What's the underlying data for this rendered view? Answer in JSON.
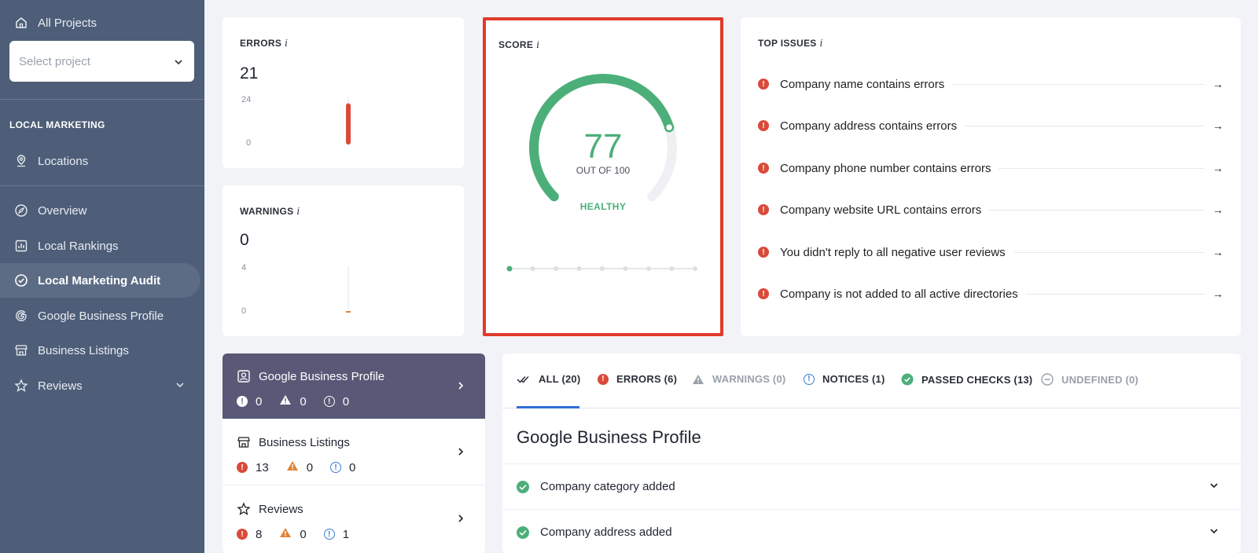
{
  "sidebar": {
    "all_projects": "All Projects",
    "select_placeholder": "Select project",
    "section": "LOCAL MARKETING",
    "items": [
      {
        "label": "Locations",
        "icon": "pin-icon"
      },
      {
        "label": "Overview",
        "icon": "compass-icon"
      },
      {
        "label": "Local Rankings",
        "icon": "bar-chart-icon"
      },
      {
        "label": "Local Marketing Audit",
        "icon": "check-circle-icon"
      },
      {
        "label": "Google Business Profile",
        "icon": "google-icon"
      },
      {
        "label": "Business Listings",
        "icon": "store-icon"
      },
      {
        "label": "Reviews",
        "icon": "star-icon"
      }
    ]
  },
  "errors": {
    "title": "ERRORS",
    "info": "i",
    "value": "21",
    "ymax": "24",
    "ymin": "0",
    "bar_value": 21,
    "bar_max": 24
  },
  "warnings": {
    "title": "WARNINGS",
    "info": "i",
    "value": "0",
    "ymax": "4",
    "ymin": "0",
    "bar_value": 0,
    "bar_max": 4
  },
  "score": {
    "title": "SCORE",
    "info": "i",
    "value": "77",
    "out_of": "OUT OF 100",
    "status": "HEALTHY",
    "fraction": 0.77,
    "history_points": 9
  },
  "top_issues": {
    "title": "TOP ISSUES",
    "info": "i",
    "items": [
      "Company name contains errors",
      "Company address contains errors",
      "Company phone number contains errors",
      "Company website URL contains errors",
      "You didn't reply to all negative user reviews",
      "Company is not added to all active directories"
    ]
  },
  "categories": [
    {
      "title": "Google Business Profile",
      "errors": "0",
      "warnings": "0",
      "notices": "0"
    },
    {
      "title": "Business Listings",
      "errors": "13",
      "warnings": "0",
      "notices": "0"
    },
    {
      "title": "Reviews",
      "errors": "8",
      "warnings": "0",
      "notices": "1"
    }
  ],
  "tabs": [
    {
      "label": "ALL (20)"
    },
    {
      "label": "ERRORS (6)"
    },
    {
      "label": "WARNINGS (0)"
    },
    {
      "label": "NOTICES (1)"
    },
    {
      "label": "PASSED CHECKS (13)"
    },
    {
      "label": "UNDEFINED (0)"
    }
  ],
  "panel": {
    "title": "Google Business Profile",
    "checks": [
      "Company category added",
      "Company address added"
    ]
  },
  "colors": {
    "sidebar": "#4e5e78",
    "accent_green": "#4caf7a",
    "error_red": "#d94a3a",
    "warning_orange": "#e0853a",
    "notice_blue": "#3a7bd5",
    "highlight": "#e03a2b"
  }
}
